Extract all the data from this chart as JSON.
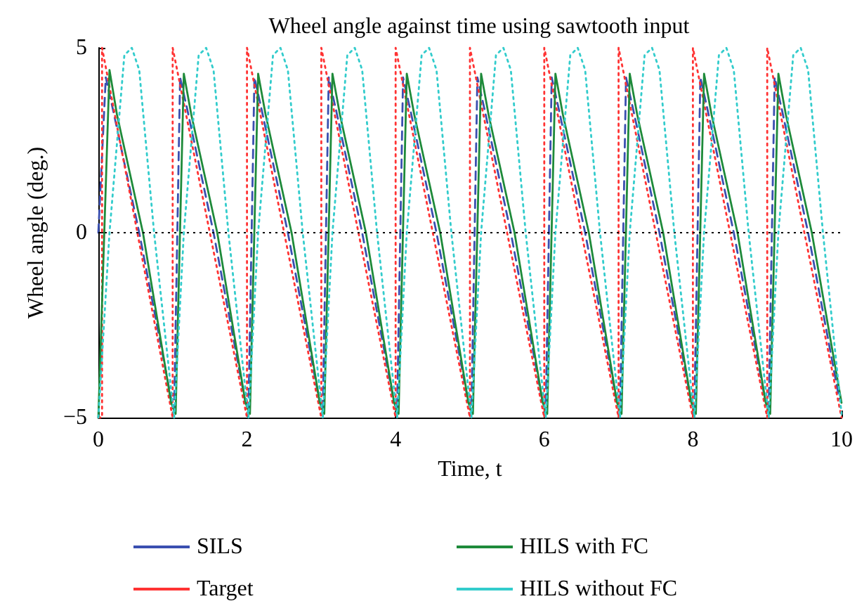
{
  "chart_data": {
    "type": "line",
    "title": "Wheel angle against time using sawtooth input",
    "xlabel": "Time, t",
    "ylabel": "Wheel angle (deg.)",
    "xlim": [
      0,
      10
    ],
    "xticks": [
      0,
      2,
      4,
      6,
      8,
      10
    ],
    "ylim": [
      -5,
      5
    ],
    "yticks": [
      {
        "value": -5,
        "label": "−5"
      },
      0,
      5
    ],
    "grid": false,
    "legend": "bottom",
    "marker": "none",
    "ref_lines": [
      {
        "axis": "y",
        "value": 0,
        "label": null,
        "color": "#000000",
        "line_style": "dotted"
      }
    ],
    "series": [
      {
        "name": "SILS",
        "color": "#3a4fb0",
        "line_style": "dashed",
        "x": [
          0,
          0.1,
          0.2,
          0.55,
          0.98,
          1.02,
          1.1,
          1.2,
          1.55,
          1.97,
          2.02,
          2.1,
          2.2,
          2.55,
          2.97,
          3.02,
          3.1,
          3.2,
          3.55,
          3.97,
          4.02,
          4.1,
          4.2,
          4.55,
          4.97,
          5.02,
          5.1,
          5.2,
          5.55,
          5.97,
          6.02,
          6.1,
          6.2,
          6.55,
          6.97,
          7.02,
          7.1,
          7.2,
          7.55,
          7.97,
          8.02,
          8.1,
          8.2,
          8.55,
          8.97,
          9.02,
          9.1,
          9.2,
          9.55,
          9.97
        ],
        "values": [
          0,
          4.2,
          3.3,
          0,
          -4.5,
          -4.8,
          4.2,
          3.3,
          0,
          -4.5,
          -4.8,
          4.2,
          3.3,
          0,
          -4.5,
          -4.8,
          4.2,
          3.3,
          0,
          -4.5,
          -4.8,
          4.2,
          3.3,
          0,
          -4.5,
          -4.8,
          4.2,
          3.3,
          0,
          -4.5,
          -4.8,
          4.2,
          3.3,
          0,
          -4.5,
          -4.8,
          4.2,
          3.3,
          0,
          -4.5,
          -4.8,
          4.2,
          3.3,
          0,
          -4.5,
          -4.8,
          4.2,
          3.3,
          0,
          -4.5
        ]
      },
      {
        "name": "Target",
        "color": "#ff3333",
        "line_style": "dotted",
        "x": [
          0,
          0.05,
          0.05,
          1,
          1,
          2,
          2,
          3,
          3,
          4,
          4,
          5,
          5,
          6,
          6,
          7,
          7,
          8,
          8,
          9,
          9,
          10
        ],
        "values": [
          -5,
          -5,
          5,
          -5,
          5,
          -5,
          5,
          -5,
          5,
          -5,
          5,
          -5,
          5,
          -5,
          5,
          -5,
          5,
          -5,
          5,
          -5,
          5,
          -5
        ]
      },
      {
        "name": "HILS with FC",
        "color": "#1e8a3a",
        "line_style": "solid",
        "x": [
          0,
          0.15,
          0.25,
          0.6,
          0.98,
          1.04,
          1.15,
          1.25,
          1.6,
          1.98,
          2.04,
          2.15,
          2.25,
          2.6,
          2.98,
          3.04,
          3.15,
          3.25,
          3.6,
          3.98,
          4.04,
          4.15,
          4.25,
          4.6,
          4.98,
          5.04,
          5.15,
          5.25,
          5.6,
          5.98,
          6.04,
          6.15,
          6.25,
          6.6,
          6.98,
          7.04,
          7.15,
          7.25,
          7.6,
          7.98,
          8.04,
          8.15,
          8.25,
          8.6,
          8.98,
          9.04,
          9.15,
          9.25,
          9.6,
          10
        ],
        "values": [
          -5,
          4.4,
          3.2,
          0,
          -4.6,
          -4.9,
          4.3,
          3.2,
          0,
          -4.6,
          -4.9,
          4.3,
          3.2,
          0,
          -4.6,
          -4.9,
          4.3,
          3.2,
          0,
          -4.6,
          -4.9,
          4.3,
          3.2,
          0,
          -4.6,
          -4.9,
          4.3,
          3.2,
          0,
          -4.6,
          -4.9,
          4.3,
          3.2,
          0,
          -4.6,
          -4.9,
          4.3,
          3.2,
          0,
          -4.6,
          -4.9,
          4.3,
          3.2,
          0,
          -4.6,
          -4.9,
          4.3,
          3.2,
          0,
          -4.6
        ]
      },
      {
        "name": "HILS without FC",
        "color": "#33cccc",
        "line_style": "dotted",
        "x": [
          0,
          0.15,
          0.35,
          0.45,
          0.55,
          0.75,
          1.02,
          1.15,
          1.35,
          1.45,
          1.55,
          1.75,
          2.02,
          2.15,
          2.35,
          2.45,
          2.55,
          2.75,
          3.02,
          3.15,
          3.35,
          3.45,
          3.55,
          3.75,
          4.02,
          4.15,
          4.35,
          4.45,
          4.55,
          4.75,
          5.02,
          5.15,
          5.35,
          5.45,
          5.55,
          5.75,
          6.02,
          6.15,
          6.35,
          6.45,
          6.55,
          6.75,
          7.02,
          7.15,
          7.35,
          7.45,
          7.55,
          7.75,
          8.02,
          8.15,
          8.35,
          8.45,
          8.55,
          8.75,
          9.02,
          9.15,
          9.35,
          9.45,
          9.55,
          9.75,
          10
        ],
        "values": [
          -5,
          0,
          4.8,
          5,
          4.4,
          0,
          -5,
          0,
          4.8,
          5,
          4.4,
          0,
          -5,
          0,
          4.8,
          5,
          4.4,
          0,
          -5,
          0,
          4.8,
          5,
          4.4,
          0,
          -5,
          0,
          4.8,
          5,
          4.4,
          0,
          -5,
          0,
          4.8,
          5,
          4.4,
          0,
          -5,
          0,
          4.8,
          5,
          4.4,
          0,
          -5,
          0,
          4.8,
          5,
          4.4,
          0,
          -5,
          0,
          4.8,
          5,
          4.4,
          0,
          -5,
          0,
          4.8,
          5,
          4.4,
          0,
          -4.9
        ]
      }
    ]
  }
}
